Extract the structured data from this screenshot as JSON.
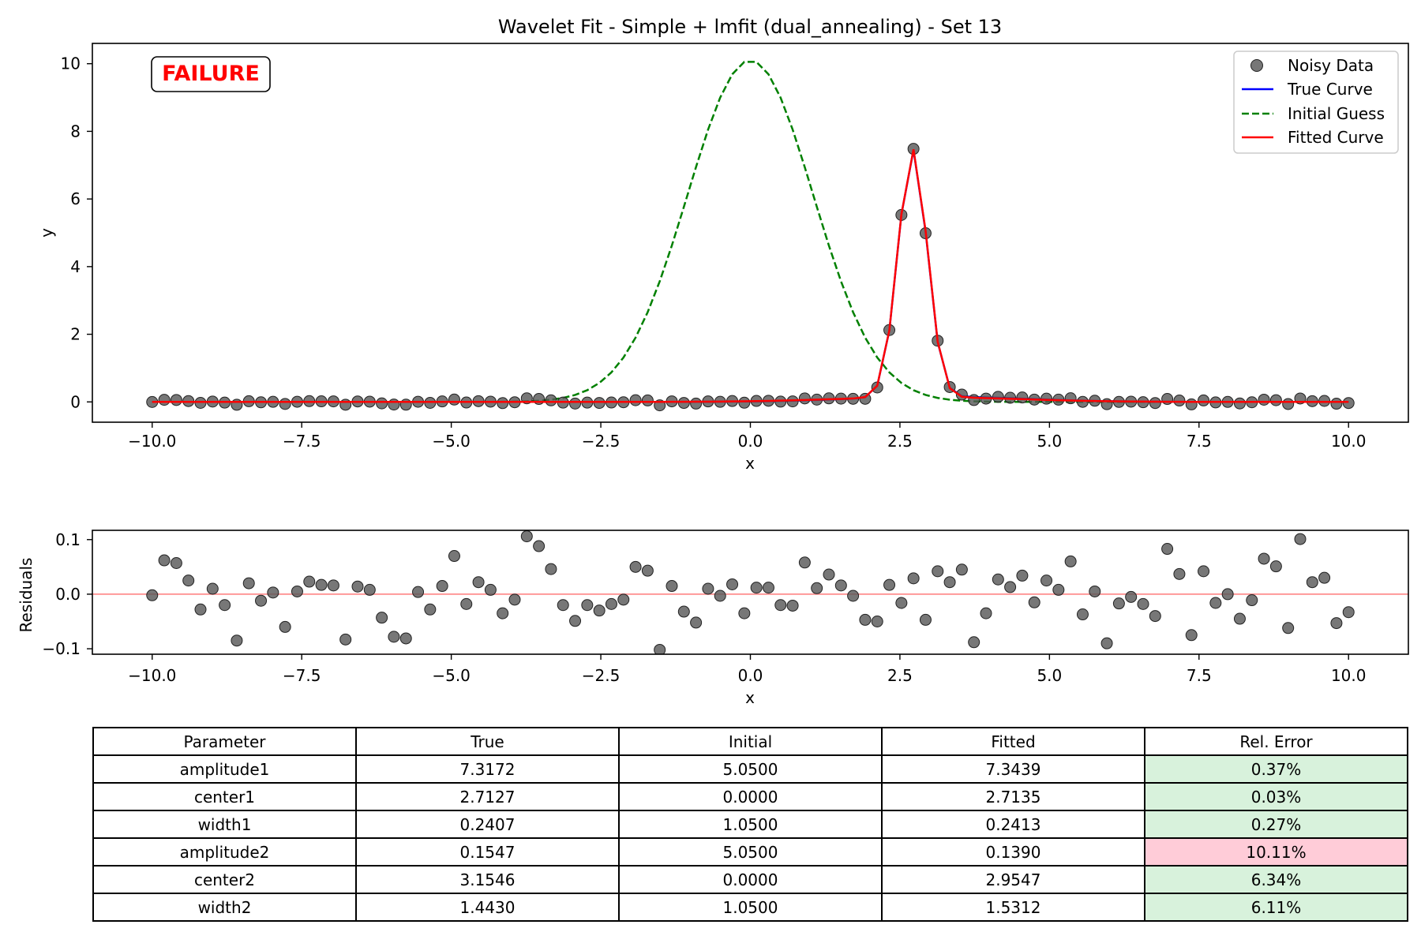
{
  "colors": {
    "noisy": "#555555",
    "true_curve": "#0000ff",
    "initial": "#008000",
    "fitted": "#ff0000",
    "status": "#ff0000",
    "zero_line": "#ff9999",
    "good_cell": "#d8f2dc",
    "bad_cell": "#ffccd8"
  },
  "chart_data": [
    {
      "type": "line",
      "title": "Wavelet Fit - Simple + lmfit (dual_annealing) - Set 13",
      "xlabel": "x",
      "ylabel": "y",
      "xlim": [
        -11,
        11
      ],
      "ylim": [
        -0.6,
        10.6
      ],
      "xticks": [
        -10.0,
        -7.5,
        -5.0,
        -2.5,
        0.0,
        2.5,
        5.0,
        7.5,
        10.0
      ],
      "xtick_labels": [
        "−10.0",
        "−7.5",
        "−5.0",
        "−2.5",
        "0.0",
        "2.5",
        "5.0",
        "7.5",
        "10.0"
      ],
      "yticks": [
        0,
        2,
        4,
        6,
        8,
        10
      ],
      "ytick_labels": [
        "0",
        "2",
        "4",
        "6",
        "8",
        "10"
      ],
      "grid": false,
      "legend_position": "top-right",
      "status_label": "FAILURE",
      "series": [
        {
          "name": "Noisy Data",
          "style": "markers",
          "x_range": [
            -10,
            10
          ],
          "n_points": 100
        },
        {
          "name": "True Curve",
          "style": "line",
          "params": {
            "amplitude1": 7.3172,
            "center1": 2.7127,
            "width1": 0.2407,
            "amplitude2": 0.1547,
            "center2": 3.1546,
            "width2": 1.443
          }
        },
        {
          "name": "Initial Guess",
          "style": "dashed",
          "params": {
            "amplitude1": 5.05,
            "center1": 0.0,
            "width1": 1.05,
            "amplitude2": 5.05,
            "center2": 0.0,
            "width2": 1.05
          }
        },
        {
          "name": "Fitted Curve",
          "style": "line",
          "params": {
            "amplitude1": 7.3439,
            "center1": 2.7135,
            "width1": 0.2413,
            "amplitude2": 0.139,
            "center2": 2.9547,
            "width2": 1.5312
          }
        }
      ]
    },
    {
      "type": "scatter",
      "xlabel": "x",
      "ylabel": "Residuals",
      "xlim": [
        -11,
        11
      ],
      "ylim": [
        -0.11,
        0.117
      ],
      "xticks": [
        -10.0,
        -7.5,
        -5.0,
        -2.5,
        0.0,
        2.5,
        5.0,
        7.5,
        10.0
      ],
      "xtick_labels": [
        "−10.0",
        "−7.5",
        "−5.0",
        "−2.5",
        "0.0",
        "2.5",
        "5.0",
        "7.5",
        "10.0"
      ],
      "yticks": [
        -0.1,
        0.0,
        0.1
      ],
      "ytick_labels": [
        "−0.1",
        "0.0",
        "0.1"
      ],
      "x_range": [
        -10,
        10
      ],
      "residuals": [
        -0.002,
        0.062,
        0.057,
        0.025,
        -0.028,
        0.01,
        -0.02,
        -0.085,
        0.02,
        -0.012,
        0.003,
        -0.06,
        0.005,
        0.023,
        0.017,
        0.016,
        -0.083,
        0.014,
        0.008,
        -0.043,
        -0.078,
        -0.081,
        0.004,
        -0.028,
        0.015,
        0.07,
        -0.018,
        0.022,
        0.008,
        -0.035,
        -0.01,
        0.106,
        0.088,
        0.046,
        -0.02,
        -0.049,
        -0.02,
        -0.03,
        -0.018,
        -0.01,
        0.05,
        0.043,
        -0.102,
        0.015,
        -0.032,
        -0.052,
        0.01,
        -0.003,
        0.018,
        -0.035,
        0.012,
        0.012,
        -0.02,
        -0.021,
        0.058,
        0.011,
        0.036,
        0.016,
        -0.003,
        -0.047,
        -0.05,
        0.017,
        -0.016,
        0.029,
        -0.047,
        0.042,
        0.022,
        0.045,
        -0.088,
        -0.035,
        0.027,
        0.013,
        0.034,
        -0.015,
        0.025,
        0.008,
        0.06,
        -0.037,
        0.005,
        -0.09,
        -0.017,
        -0.005,
        -0.018,
        -0.04,
        0.083,
        0.037,
        -0.075,
        0.042,
        -0.016,
        0.0,
        -0.045,
        -0.011,
        0.065,
        0.051,
        -0.062,
        0.101,
        0.022,
        0.03,
        -0.053,
        -0.033
      ]
    }
  ],
  "table": {
    "headers": [
      "Parameter",
      "True",
      "Initial",
      "Fitted",
      "Rel. Error"
    ],
    "rows": [
      {
        "name": "amplitude1",
        "true": "7.3172",
        "initial": "5.0500",
        "fitted": "7.3439",
        "error": "0.37%",
        "ok": true
      },
      {
        "name": "center1",
        "true": "2.7127",
        "initial": "0.0000",
        "fitted": "2.7135",
        "error": "0.03%",
        "ok": true
      },
      {
        "name": "width1",
        "true": "0.2407",
        "initial": "1.0500",
        "fitted": "0.2413",
        "error": "0.27%",
        "ok": true
      },
      {
        "name": "amplitude2",
        "true": "0.1547",
        "initial": "5.0500",
        "fitted": "0.1390",
        "error": "10.11%",
        "ok": false
      },
      {
        "name": "center2",
        "true": "3.1546",
        "initial": "0.0000",
        "fitted": "2.9547",
        "error": "6.34%",
        "ok": true
      },
      {
        "name": "width2",
        "true": "1.4430",
        "initial": "1.0500",
        "fitted": "1.5312",
        "error": "6.11%",
        "ok": true
      }
    ]
  }
}
